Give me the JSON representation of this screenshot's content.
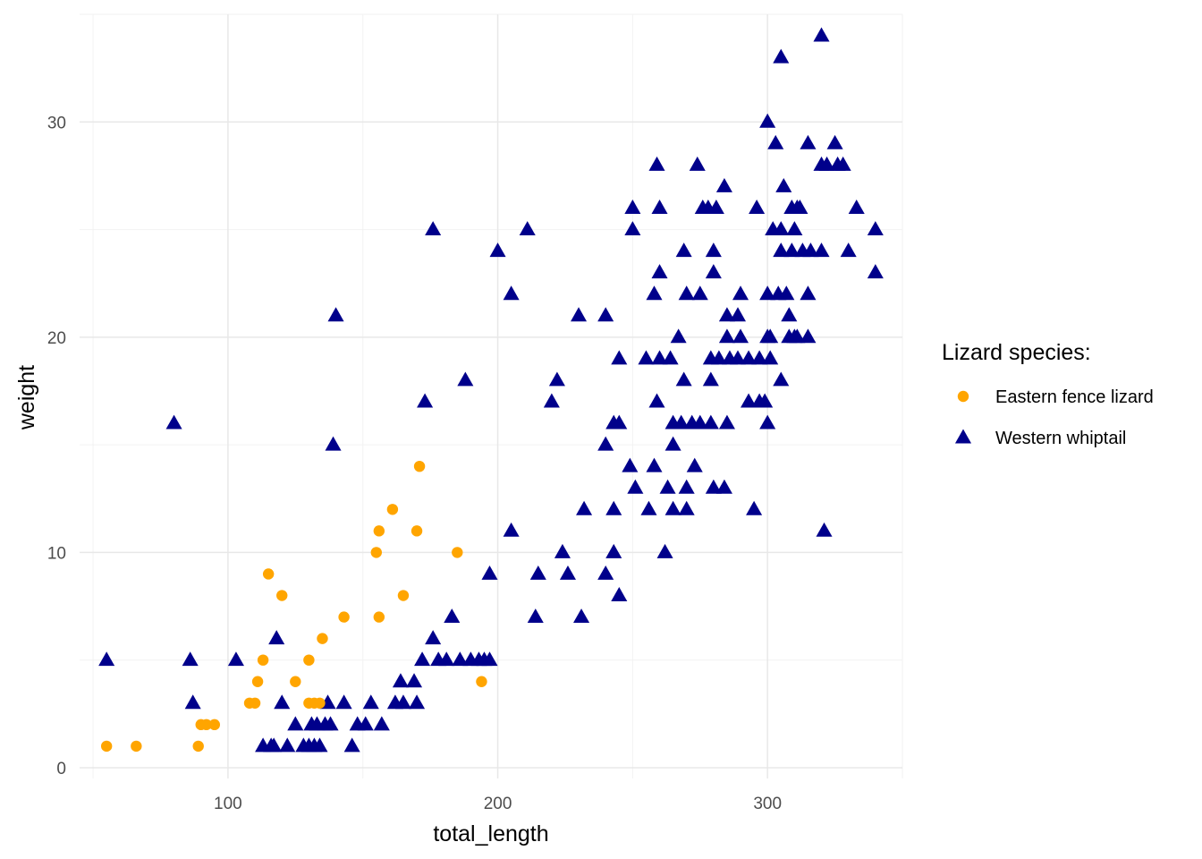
{
  "chart_data": {
    "type": "scatter",
    "title": "",
    "xlabel": "total_length",
    "ylabel": "weight",
    "xlim": [
      45,
      350
    ],
    "ylim": [
      -0.5,
      35
    ],
    "x_ticks": [
      100,
      200,
      300
    ],
    "y_ticks": [
      0,
      10,
      20,
      30
    ],
    "grid": true,
    "legend": {
      "title": "Lizard species:",
      "placement": "right"
    },
    "series": [
      {
        "name": "Eastern fence lizard",
        "color": "#FFA500",
        "marker": "circle",
        "points": [
          [
            55,
            1
          ],
          [
            66,
            1
          ],
          [
            89,
            1
          ],
          [
            90,
            2
          ],
          [
            92,
            2
          ],
          [
            95,
            2
          ],
          [
            108,
            3
          ],
          [
            110,
            3
          ],
          [
            111,
            4
          ],
          [
            113,
            5
          ],
          [
            115,
            9
          ],
          [
            120,
            8
          ],
          [
            125,
            4
          ],
          [
            130,
            5
          ],
          [
            130,
            3
          ],
          [
            132,
            3
          ],
          [
            134,
            3
          ],
          [
            135,
            6
          ],
          [
            143,
            7
          ],
          [
            155,
            10
          ],
          [
            156,
            7
          ],
          [
            156,
            11
          ],
          [
            161,
            12
          ],
          [
            165,
            8
          ],
          [
            170,
            11
          ],
          [
            171,
            14
          ],
          [
            185,
            10
          ],
          [
            194,
            4
          ]
        ]
      },
      {
        "name": "Western whiptail",
        "color": "#00008B",
        "marker": "triangle",
        "points": [
          [
            55,
            5
          ],
          [
            80,
            16
          ],
          [
            86,
            5
          ],
          [
            87,
            3
          ],
          [
            103,
            5
          ],
          [
            113,
            1
          ],
          [
            116,
            1
          ],
          [
            117,
            1
          ],
          [
            118,
            6
          ],
          [
            120,
            3
          ],
          [
            122,
            1
          ],
          [
            125,
            2
          ],
          [
            128,
            1
          ],
          [
            130,
            1
          ],
          [
            131,
            2
          ],
          [
            132,
            1
          ],
          [
            133,
            2
          ],
          [
            134,
            1
          ],
          [
            136,
            2
          ],
          [
            137,
            3
          ],
          [
            138,
            2
          ],
          [
            139,
            15
          ],
          [
            140,
            21
          ],
          [
            143,
            3
          ],
          [
            146,
            1
          ],
          [
            148,
            2
          ],
          [
            151,
            2
          ],
          [
            153,
            3
          ],
          [
            157,
            2
          ],
          [
            162,
            3
          ],
          [
            164,
            4
          ],
          [
            165,
            3
          ],
          [
            169,
            4
          ],
          [
            170,
            3
          ],
          [
            172,
            5
          ],
          [
            173,
            17
          ],
          [
            176,
            6
          ],
          [
            176,
            25
          ],
          [
            178,
            5
          ],
          [
            181,
            5
          ],
          [
            183,
            7
          ],
          [
            186,
            5
          ],
          [
            188,
            18
          ],
          [
            190,
            5
          ],
          [
            193,
            5
          ],
          [
            195,
            5
          ],
          [
            197,
            5
          ],
          [
            197,
            9
          ],
          [
            200,
            24
          ],
          [
            205,
            11
          ],
          [
            205,
            22
          ],
          [
            211,
            25
          ],
          [
            214,
            7
          ],
          [
            215,
            9
          ],
          [
            220,
            17
          ],
          [
            222,
            18
          ],
          [
            224,
            10
          ],
          [
            226,
            9
          ],
          [
            230,
            21
          ],
          [
            231,
            7
          ],
          [
            232,
            12
          ],
          [
            240,
            21
          ],
          [
            240,
            15
          ],
          [
            240,
            9
          ],
          [
            243,
            12
          ],
          [
            243,
            16
          ],
          [
            243,
            10
          ],
          [
            245,
            16
          ],
          [
            245,
            19
          ],
          [
            245,
            8
          ],
          [
            249,
            14
          ],
          [
            250,
            26
          ],
          [
            250,
            25
          ],
          [
            251,
            13
          ],
          [
            255,
            19
          ],
          [
            256,
            12
          ],
          [
            258,
            14
          ],
          [
            258,
            22
          ],
          [
            259,
            28
          ],
          [
            259,
            17
          ],
          [
            260,
            19
          ],
          [
            260,
            26
          ],
          [
            260,
            23
          ],
          [
            262,
            10
          ],
          [
            263,
            13
          ],
          [
            264,
            19
          ],
          [
            265,
            15
          ],
          [
            265,
            16
          ],
          [
            265,
            12
          ],
          [
            267,
            20
          ],
          [
            268,
            16
          ],
          [
            269,
            18
          ],
          [
            269,
            24
          ],
          [
            270,
            22
          ],
          [
            270,
            12
          ],
          [
            270,
            13
          ],
          [
            272,
            16
          ],
          [
            273,
            14
          ],
          [
            274,
            28
          ],
          [
            275,
            16
          ],
          [
            275,
            22
          ],
          [
            276,
            26
          ],
          [
            278,
            26
          ],
          [
            279,
            18
          ],
          [
            279,
            16
          ],
          [
            279,
            19
          ],
          [
            280,
            24
          ],
          [
            280,
            23
          ],
          [
            280,
            13
          ],
          [
            281,
            26
          ],
          [
            282,
            19
          ],
          [
            284,
            13
          ],
          [
            284,
            27
          ],
          [
            285,
            21
          ],
          [
            285,
            20
          ],
          [
            285,
            16
          ],
          [
            286,
            19
          ],
          [
            289,
            19
          ],
          [
            289,
            21
          ],
          [
            290,
            22
          ],
          [
            290,
            20
          ],
          [
            293,
            19
          ],
          [
            293,
            17
          ],
          [
            295,
            12
          ],
          [
            296,
            26
          ],
          [
            297,
            19
          ],
          [
            297,
            17
          ],
          [
            299,
            17
          ],
          [
            300,
            30
          ],
          [
            300,
            22
          ],
          [
            300,
            20
          ],
          [
            300,
            16
          ],
          [
            301,
            20
          ],
          [
            301,
            19
          ],
          [
            302,
            25
          ],
          [
            303,
            29
          ],
          [
            304,
            22
          ],
          [
            305,
            18
          ],
          [
            305,
            24
          ],
          [
            305,
            25
          ],
          [
            305,
            33
          ],
          [
            306,
            27
          ],
          [
            307,
            22
          ],
          [
            308,
            21
          ],
          [
            308,
            20
          ],
          [
            309,
            26
          ],
          [
            309,
            24
          ],
          [
            310,
            20
          ],
          [
            310,
            25
          ],
          [
            311,
            26
          ],
          [
            311,
            20
          ],
          [
            312,
            26
          ],
          [
            313,
            24
          ],
          [
            315,
            29
          ],
          [
            315,
            22
          ],
          [
            315,
            20
          ],
          [
            316,
            24
          ],
          [
            320,
            34
          ],
          [
            320,
            28
          ],
          [
            320,
            24
          ],
          [
            321,
            11
          ],
          [
            322,
            28
          ],
          [
            325,
            29
          ],
          [
            326,
            28
          ],
          [
            328,
            28
          ],
          [
            330,
            24
          ],
          [
            333,
            26
          ],
          [
            340,
            25
          ],
          [
            340,
            23
          ]
        ]
      }
    ]
  }
}
